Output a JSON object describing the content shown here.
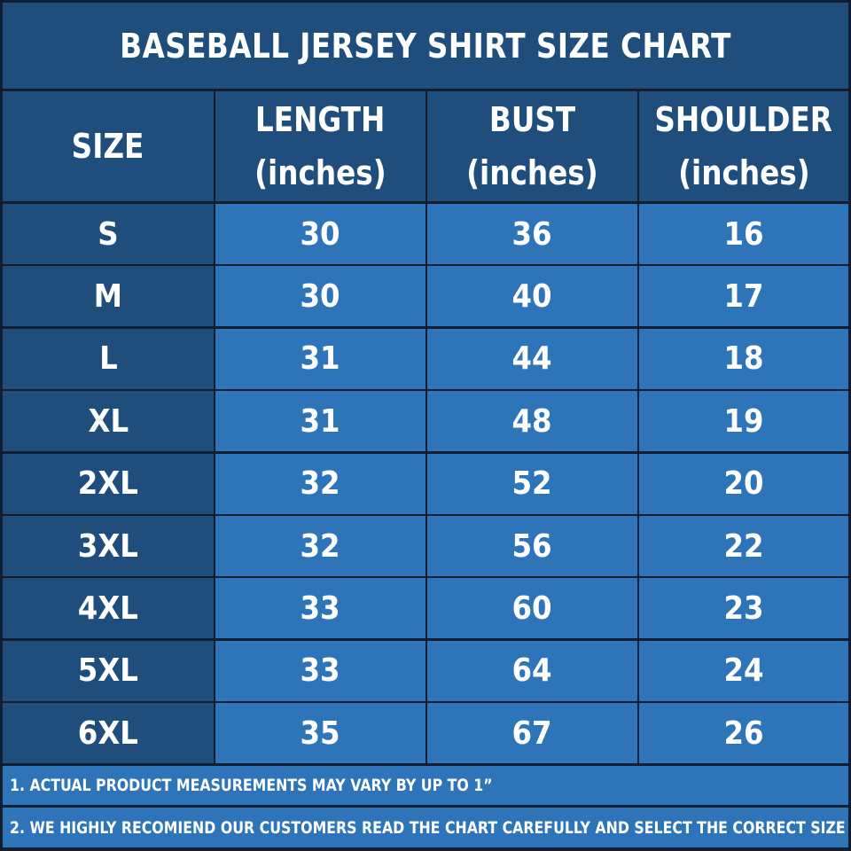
{
  "colors": {
    "frame": "#141d2e",
    "header_bg": "#1f4d7c",
    "data_bg": "#2d74b9",
    "text": "#ffffff"
  },
  "title": "BASEBALL JERSEY SHIRT SIZE CHART",
  "headers": [
    {
      "line1": "SIZE",
      "line2": ""
    },
    {
      "line1": "LENGTH",
      "line2": "(inches)"
    },
    {
      "line1": "BUST",
      "line2": "(inches)"
    },
    {
      "line1": "SHOULDER",
      "line2": "(inches)"
    }
  ],
  "chart_data": {
    "type": "table",
    "title": "BASEBALL JERSEY SHIRT SIZE CHART",
    "columns": [
      "SIZE",
      "LENGTH (inches)",
      "BUST (inches)",
      "SHOULDER (inches)"
    ],
    "rows": [
      [
        "S",
        "30",
        "36",
        "16"
      ],
      [
        "M",
        "30",
        "40",
        "17"
      ],
      [
        "L",
        "31",
        "44",
        "18"
      ],
      [
        "XL",
        "31",
        "48",
        "19"
      ],
      [
        "2XL",
        "32",
        "52",
        "20"
      ],
      [
        "3XL",
        "32",
        "56",
        "22"
      ],
      [
        "4XL",
        "33",
        "60",
        "23"
      ],
      [
        "5XL",
        "33",
        "64",
        "24"
      ],
      [
        "6XL",
        "35",
        "67",
        "26"
      ]
    ]
  },
  "notes": [
    "1. ACTUAL PRODUCT MEASUREMENTS MAY VARY BY UP TO 1”",
    "2. WE HIGHLY RECOMIEND OUR CUSTOMERS READ THE CHART CAREFULLY AND SELECT THE CORRECT SIZE"
  ]
}
